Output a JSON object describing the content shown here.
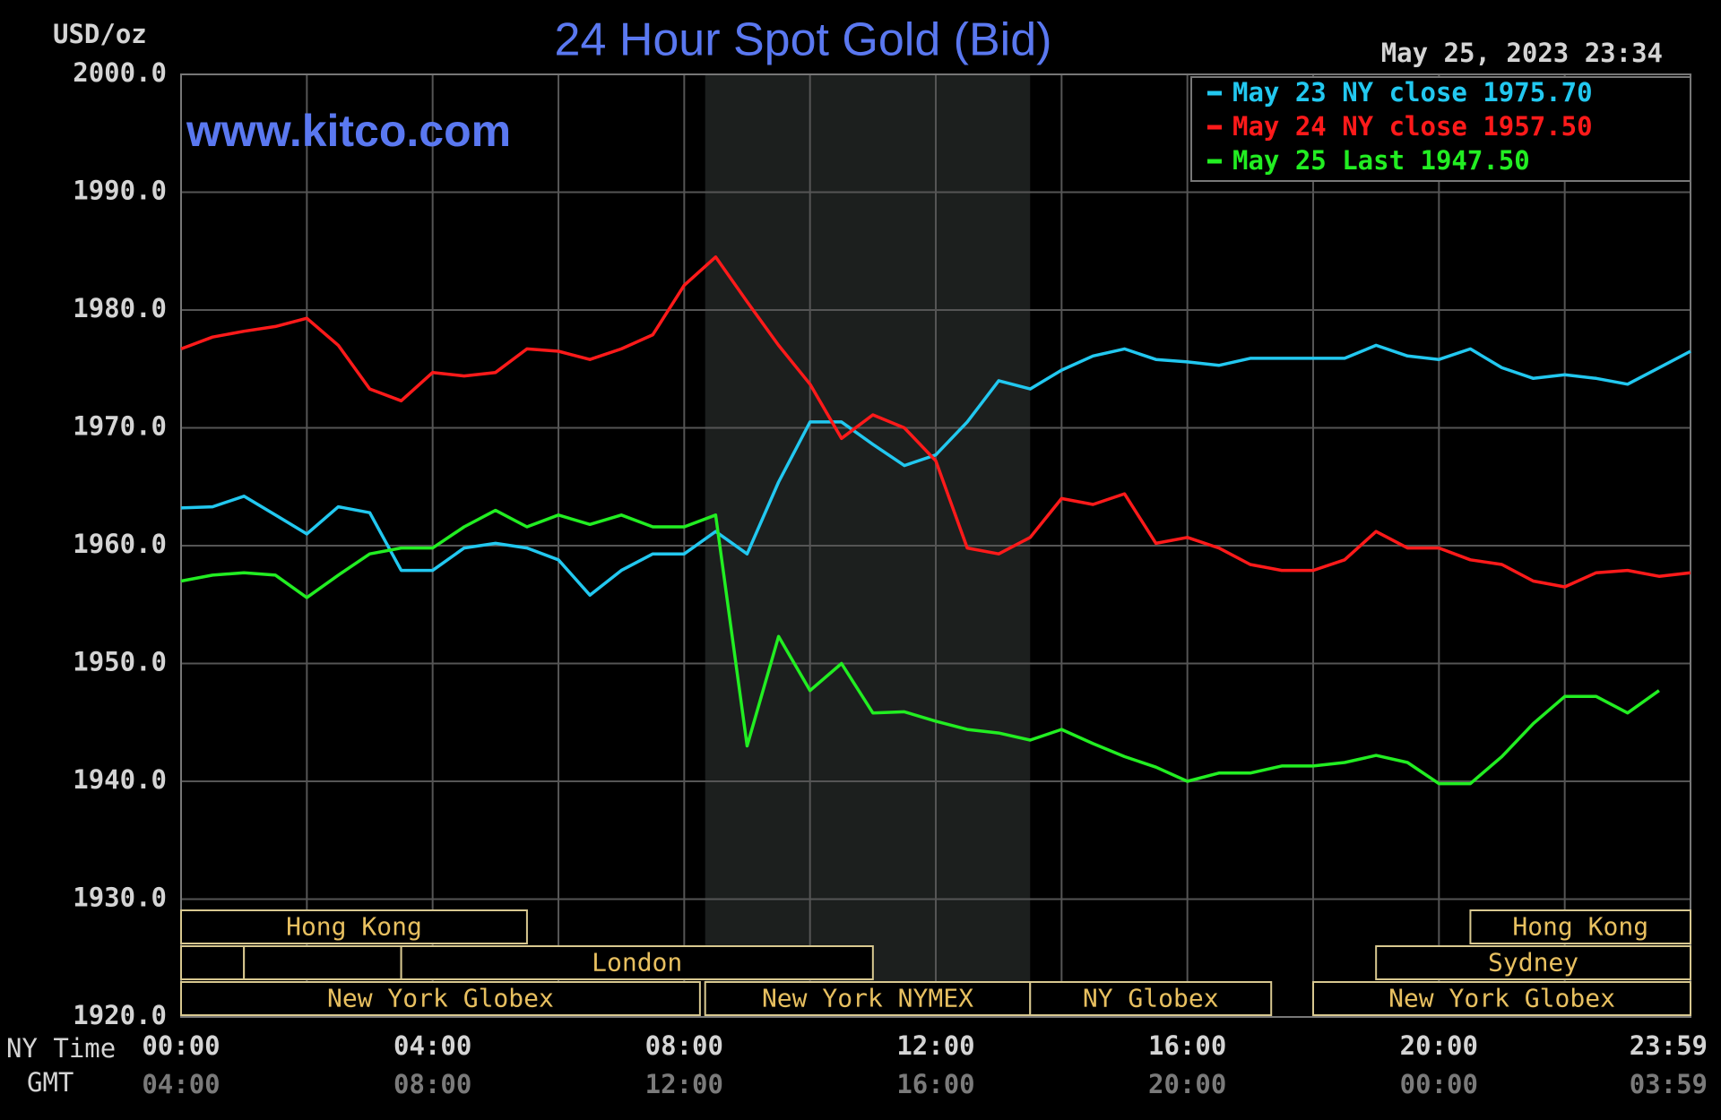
{
  "chart_data": {
    "type": "line",
    "title": "24 Hour Spot Gold (Bid)",
    "y_label": "USD/oz",
    "timestamp": "May 25, 2023 23:34",
    "watermark": "www.kitco.com",
    "x_label": "NY Time",
    "x2_label": "GMT",
    "x": [
      0,
      0.5,
      1,
      1.5,
      2,
      2.5,
      3,
      3.5,
      4,
      4.5,
      5,
      5.5,
      6,
      6.5,
      7,
      7.5,
      8,
      8.5,
      9,
      9.5,
      10,
      10.5,
      11,
      11.5,
      12,
      12.5,
      13,
      13.5,
      14,
      14.5,
      15,
      15.5,
      16,
      16.5,
      17,
      17.5,
      18,
      18.5,
      19,
      19.5,
      20,
      20.5,
      21,
      21.5,
      22,
      22.5,
      23,
      23.5,
      24
    ],
    "series": [
      {
        "name": "May 23 NY close 1975.70",
        "color": "#22c8f0",
        "values": [
          1963.2,
          1963.3,
          1964.2,
          1962.6,
          1961.0,
          1963.3,
          1962.8,
          1957.9,
          1957.9,
          1959.8,
          1960.2,
          1959.8,
          1958.8,
          1955.8,
          1957.9,
          1959.3,
          1959.3,
          1961.2,
          1959.3,
          1965.4,
          1970.5,
          1970.5,
          1968.6,
          1966.8,
          1967.7,
          1970.5,
          1974.0,
          1973.3,
          1974.9,
          1976.1,
          1976.7,
          1975.8,
          1975.6,
          1975.3,
          1975.9,
          1975.9,
          1975.9,
          1975.9,
          1977.0,
          1976.1,
          1975.8,
          1976.7,
          1975.1,
          1974.2,
          1974.5,
          1974.2,
          1973.7,
          1975.1,
          1976.5
        ]
      },
      {
        "name": "May 24 NY close 1957.50",
        "color": "#ff1a1a",
        "values": [
          1976.7,
          1977.7,
          1978.2,
          1978.6,
          1979.3,
          1977.0,
          1973.3,
          1972.3,
          1974.7,
          1974.4,
          1974.7,
          1976.7,
          1976.5,
          1975.8,
          1976.7,
          1977.9,
          1982.1,
          1984.5,
          1980.7,
          1977.0,
          1973.7,
          1969.1,
          1971.1,
          1970.0,
          1967.2,
          1959.8,
          1959.3,
          1960.7,
          1964.0,
          1963.5,
          1964.4,
          1960.2,
          1960.7,
          1959.8,
          1958.4,
          1957.9,
          1957.9,
          1958.8,
          1961.2,
          1959.8,
          1959.8,
          1958.8,
          1958.4,
          1957.0,
          1956.5,
          1957.7,
          1957.9,
          1957.4,
          1957.7
        ]
      },
      {
        "name": "May 25 Last 1947.50",
        "color": "#22ee22",
        "values": [
          1957.0,
          1957.5,
          1957.7,
          1957.5,
          1955.6,
          1957.5,
          1959.3,
          1959.8,
          1959.8,
          1961.6,
          1963.0,
          1961.6,
          1962.6,
          1961.8,
          1962.6,
          1961.6,
          1961.6,
          1962.6,
          1943.0,
          1952.3,
          1947.7,
          1950.0,
          1945.8,
          1945.9,
          1945.1,
          1944.4,
          1944.1,
          1943.5,
          1944.4,
          1943.2,
          1942.1,
          1941.2,
          1940.0,
          1940.7,
          1940.7,
          1941.3,
          1941.3,
          1941.6,
          1942.2,
          1941.6,
          1939.8,
          1939.8,
          1942.1,
          1944.9,
          1947.2,
          1947.2,
          1945.8,
          1947.7,
          null
        ]
      }
    ],
    "xlim": [
      0,
      24
    ],
    "xticks": [
      {
        "value": 0,
        "label": "00:00"
      },
      {
        "value": 4,
        "label": "04:00"
      },
      {
        "value": 8,
        "label": "08:00"
      },
      {
        "value": 12,
        "label": "12:00"
      },
      {
        "value": 16,
        "label": "16:00"
      },
      {
        "value": 20,
        "label": "20:00"
      },
      {
        "value": 23.983,
        "label": "23:59"
      }
    ],
    "x2ticks": [
      {
        "value": 0,
        "label": "04:00"
      },
      {
        "value": 4,
        "label": "08:00"
      },
      {
        "value": 8,
        "label": "12:00"
      },
      {
        "value": 12,
        "label": "16:00"
      },
      {
        "value": 16,
        "label": "20:00"
      },
      {
        "value": 20,
        "label": "00:00"
      },
      {
        "value": 23.983,
        "label": "03:59"
      }
    ],
    "xgrid": [
      0,
      2,
      4,
      6,
      8,
      10,
      12,
      14,
      16,
      18,
      20,
      22,
      24
    ],
    "ylim": [
      1920,
      2000
    ],
    "yticks": [
      {
        "value": 1920,
        "label": "1920.0"
      },
      {
        "value": 1930,
        "label": "1930.0"
      },
      {
        "value": 1940,
        "label": "1940.0"
      },
      {
        "value": 1950,
        "label": "1950.0"
      },
      {
        "value": 1960,
        "label": "1960.0"
      },
      {
        "value": 1970,
        "label": "1970.0"
      },
      {
        "value": 1980,
        "label": "1980.0"
      },
      {
        "value": 1990,
        "label": "1990.0"
      },
      {
        "value": 2000,
        "label": "2000.0"
      }
    ],
    "grid": true,
    "legend": "upper right",
    "shaded_range": [
      8.333,
      13.5
    ],
    "sessions": [
      {
        "label": "Hong Kong",
        "start": 0,
        "end": 5.5,
        "row": 0
      },
      {
        "label": "Hong Kong",
        "start": 20.5,
        "end": 24,
        "row": 0
      },
      {
        "start": 0,
        "end": 1,
        "row": 1
      },
      {
        "start": 1,
        "end": 3.5,
        "row": 1
      },
      {
        "label": "London",
        "start": 3.5,
        "end": 11,
        "row": 1
      },
      {
        "label": "Sydney",
        "start": 19,
        "end": 24,
        "row": 1
      },
      {
        "label": "New York Globex",
        "start": 0,
        "end": 8.25,
        "row": 2
      },
      {
        "label": "New York NYMEX",
        "start": 8.333,
        "end": 13.5,
        "row": 2
      },
      {
        "label": "NY Globex",
        "start": 13.5,
        "end": 17.333,
        "row": 2
      },
      {
        "label": "New York Globex",
        "start": 18,
        "end": 24,
        "row": 2
      }
    ]
  }
}
